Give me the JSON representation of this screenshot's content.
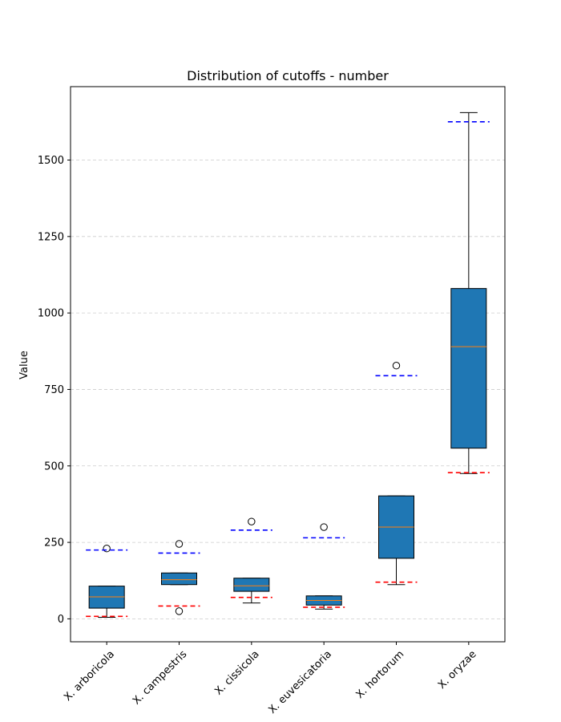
{
  "chart_data": {
    "type": "boxplot",
    "title": "Distribution of cutoffs - number",
    "xlabel": "",
    "ylabel": "Value",
    "ylim": [
      -75,
      1740
    ],
    "yticks": [
      0,
      250,
      500,
      750,
      1000,
      1250,
      1500
    ],
    "ytick_labels": [
      "0",
      "250",
      "500",
      "750",
      "1000",
      "1250",
      "1500"
    ],
    "grid": "y-dashed",
    "categories": [
      "X. arboricola",
      "X. campestris",
      "X. cissicola",
      "X. euvesicatoria",
      "X. hortorum",
      "X. oryzae"
    ],
    "boxes": [
      {
        "whisker_low": 5,
        "q1": 35,
        "median": 72,
        "q3": 107,
        "whisker_high": 107,
        "outliers": [
          230
        ]
      },
      {
        "whisker_low": 112,
        "q1": 112,
        "median": 128,
        "q3": 150,
        "whisker_high": 150,
        "outliers": [
          25,
          245
        ]
      },
      {
        "whisker_low": 52,
        "q1": 90,
        "median": 108,
        "q3": 133,
        "whisker_high": 133,
        "outliers": [
          318
        ]
      },
      {
        "whisker_low": 32,
        "q1": 45,
        "median": 60,
        "q3": 75,
        "whisker_high": 75,
        "outliers": [
          300
        ]
      },
      {
        "whisker_low": 112,
        "q1": 198,
        "median": 300,
        "q3": 402,
        "whisker_high": 402,
        "outliers": [
          828
        ]
      },
      {
        "whisker_low": 475,
        "q1": 558,
        "median": 890,
        "q3": 1080,
        "whisker_high": 1655,
        "outliers": []
      }
    ],
    "lower_cutoffs": [
      8,
      42,
      70,
      38,
      120,
      478
    ],
    "upper_cutoffs": [
      225,
      215,
      290,
      265,
      795,
      1625
    ],
    "colors": {
      "box_fill": "#1f77b4",
      "box_edge": "#000000",
      "median": "#ff7f0e",
      "lower_cutoff": "#ff0000",
      "upper_cutoff": "#0000ff",
      "grid": "#cccccc"
    }
  }
}
